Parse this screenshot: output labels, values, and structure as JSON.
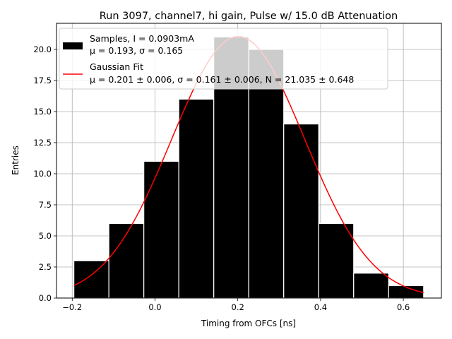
{
  "chart_data": {
    "type": "histogram",
    "title": "Run 3097, channel7, hi gain, Pulse w/ 15.0 dB Attenuation",
    "xlabel": "Timing from OFCs [ns]",
    "ylabel": "Entries",
    "xlim": [
      -0.238,
      0.692
    ],
    "ylim": [
      0,
      22.1
    ],
    "grid": true,
    "legend_position": "top-left",
    "x_ticks": [
      -0.2,
      0.0,
      0.2,
      0.4,
      0.6
    ],
    "x_tick_labels": [
      "−0.2",
      "0.0",
      "0.2",
      "0.4",
      "0.6"
    ],
    "y_ticks": [
      0.0,
      2.5,
      5.0,
      7.5,
      10.0,
      12.5,
      15.0,
      17.5,
      20.0
    ],
    "y_tick_labels": [
      "0.0",
      "2.5",
      "5.0",
      "7.5",
      "10.0",
      "12.5",
      "15.0",
      "17.5",
      "20.0"
    ],
    "bins": {
      "edges": [
        -0.196,
        -0.1115,
        -0.027,
        0.0575,
        0.142,
        0.2265,
        0.311,
        0.3955,
        0.48,
        0.5645,
        0.649
      ],
      "counts": [
        3,
        6,
        11,
        16,
        21,
        20,
        14,
        6,
        2,
        1
      ],
      "color": "#000000",
      "edgecolor": "#ffffff"
    },
    "fit": {
      "mu": 0.201,
      "sigma": 0.161,
      "N": 21.035,
      "x_range": [
        -0.196,
        0.649
      ],
      "color": "#ff0000"
    },
    "legend": {
      "samples_line1": "Samples, I = 0.0903mA",
      "samples_line2": "μ = 0.193, σ = 0.165",
      "fit_line1": "Gaussian Fit",
      "fit_line2": "μ = 0.201 ± 0.006, σ = 0.161 ± 0.006, N = 21.035 ± 0.648"
    }
  }
}
